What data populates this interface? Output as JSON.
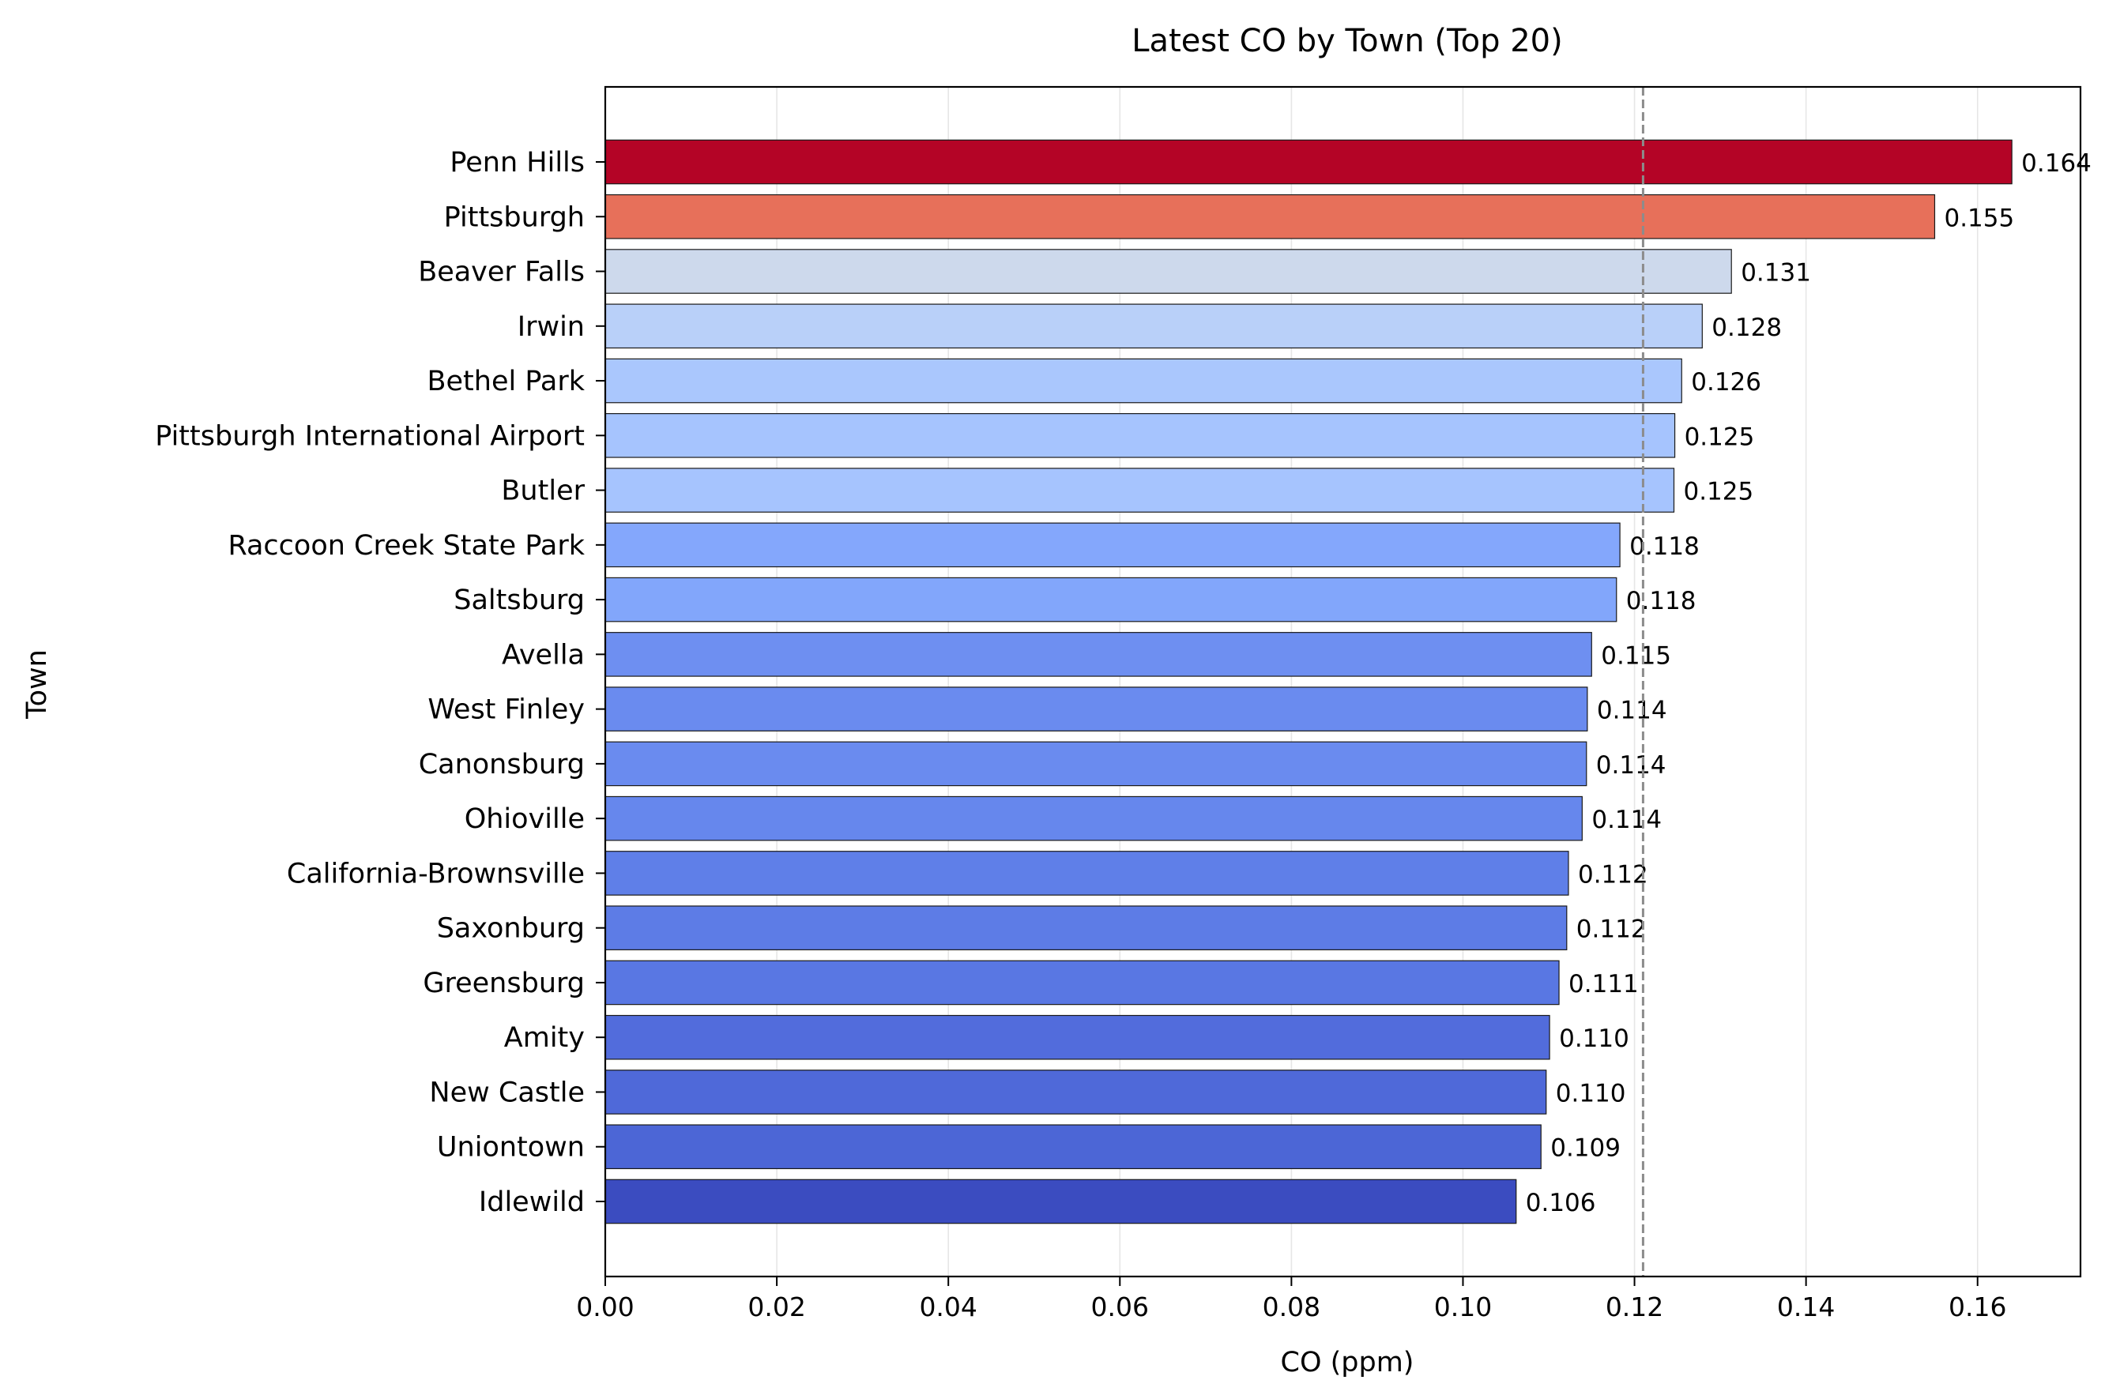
{
  "chart_data": {
    "type": "bar",
    "orientation": "horizontal",
    "title": "Latest CO by Town (Top 20)",
    "xlabel": "CO (ppm)",
    "ylabel": "Town",
    "xlim": [
      0,
      0.172
    ],
    "xticks": [
      "0.00",
      "0.02",
      "0.04",
      "0.06",
      "0.08",
      "0.10",
      "0.12",
      "0.14",
      "0.16"
    ],
    "reference_line": 0.121,
    "grid": "vertical",
    "colormap": "coolwarm",
    "categories": [
      "Penn Hills",
      "Pittsburgh",
      "Beaver Falls",
      "Irwin",
      "Bethel Park",
      "Pittsburgh International Airport",
      "Butler",
      "Raccoon Creek State Park",
      "Saltsburg",
      "Avella",
      "West Finley",
      "Canonsburg",
      "Ohioville",
      "California-Brownsville",
      "Saxonburg",
      "Greensburg",
      "Amity",
      "New Castle",
      "Uniontown",
      "Idlewild"
    ],
    "values": [
      0.164,
      0.155,
      0.1313,
      0.1279,
      0.1255,
      0.1247,
      0.1246,
      0.1183,
      0.1179,
      0.115,
      0.1145,
      0.1144,
      0.1139,
      0.1123,
      0.1121,
      0.1112,
      0.1101,
      0.1097,
      0.1091,
      0.1062
    ],
    "labels": [
      "0.164",
      "0.155",
      "0.131",
      "0.128",
      "0.126",
      "0.125",
      "0.125",
      "0.118",
      "0.118",
      "0.115",
      "0.114",
      "0.114",
      "0.114",
      "0.112",
      "0.112",
      "0.111",
      "0.110",
      "0.110",
      "0.109",
      "0.106"
    ],
    "colors": [
      "#b40426",
      "#e7705a",
      "#cdd9ec",
      "#b9d0f9",
      "#aac7fd",
      "#a6c4fe",
      "#a6c4fe",
      "#84a7fc",
      "#82a6fb",
      "#6e8ff1",
      "#6a8bef",
      "#6a8bef",
      "#6687ed",
      "#5f7fe8",
      "#5d7ce6",
      "#5977e3",
      "#526cdc",
      "#4f69d9",
      "#4c66d6",
      "#3b4cc0"
    ]
  }
}
